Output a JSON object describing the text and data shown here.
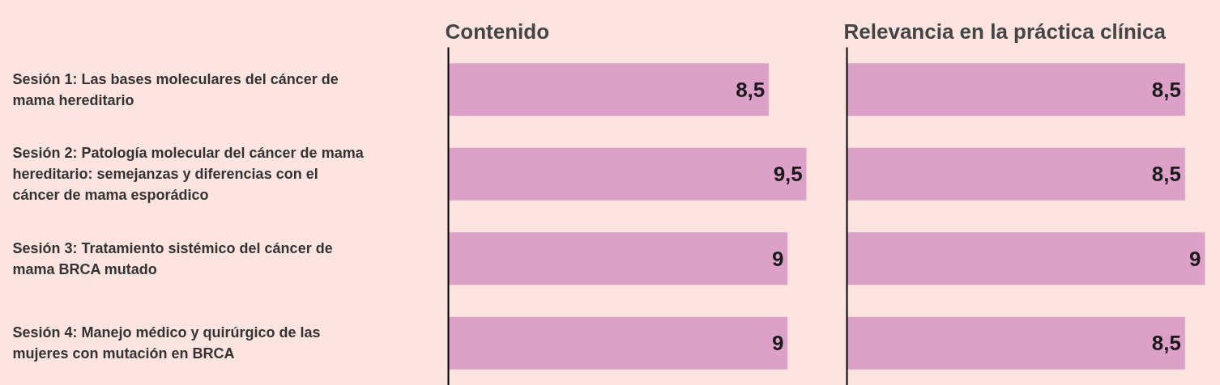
{
  "chart_data": [
    {
      "type": "bar",
      "orientation": "horizontal",
      "title": "Contenido",
      "categories": [
        "Sesión 1: Las bases moleculares del cáncer de mama hereditario",
        "Sesión 2: Patología molecular del cáncer de mama hereditario: semejanzas y diferencias con el cáncer de mama esporádico",
        "Sesión 3: Tratamiento sistémico del cáncer de mama BRCA mutado",
        "Sesión 4: Manejo médico y quirúrgico de las mujeres con mutación en BRCA"
      ],
      "values": [
        8.5,
        9.5,
        9,
        9
      ],
      "value_labels": [
        "8,5",
        "9,5",
        "9",
        "9"
      ],
      "color": "#dda0c9",
      "tick_labels": "y",
      "grid": false,
      "legend": false
    },
    {
      "type": "bar",
      "orientation": "horizontal",
      "title": "Relevancia en la práctica clínica",
      "categories": [
        null,
        null,
        null,
        null
      ],
      "values": [
        8.5,
        8.5,
        9,
        8.5
      ],
      "value_labels": [
        "8,5",
        "8,5",
        "9",
        "8,5"
      ],
      "color": "#dda0c9",
      "tick_labels": false,
      "grid": false,
      "legend": false
    }
  ]
}
